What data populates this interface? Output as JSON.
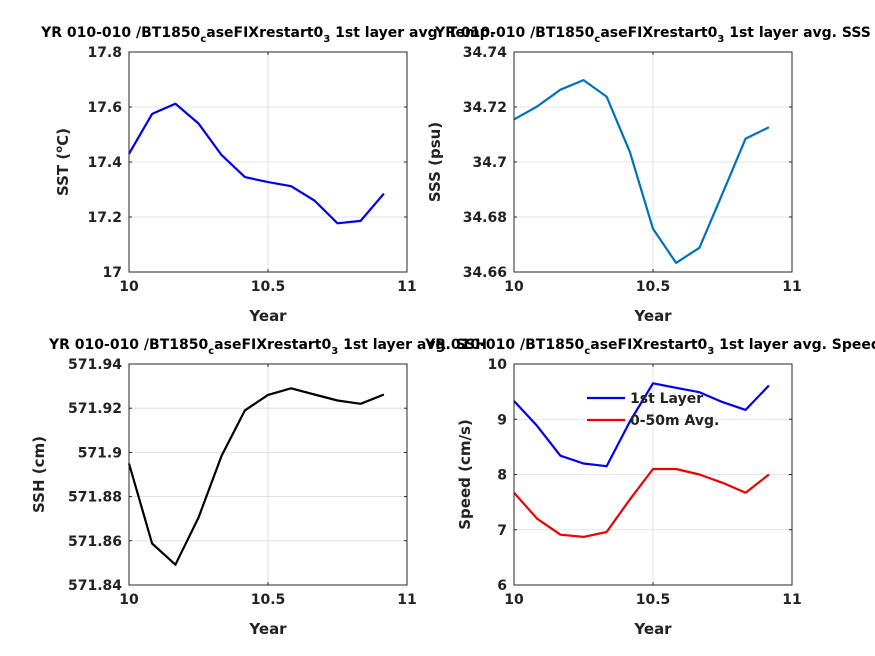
{
  "chart_data": [
    {
      "type": "line",
      "title_main": "YR 010-010 /BT1850",
      "title_sub": "c",
      "title_main2": "aseFIXrestart0",
      "title_sub2": "3",
      "title_tail": " 1st layer avg. Temp.",
      "xlabel": "Year",
      "ylabel_main": "SST (",
      "ylabel_sup": "o",
      "ylabel_tail": "C)",
      "xlim": [
        10,
        11
      ],
      "ylim": [
        17,
        17.8
      ],
      "xticks": [
        10,
        10.5,
        11
      ],
      "xtick_labels": [
        "10",
        "10.5",
        "11"
      ],
      "yticks": [
        17,
        17.2,
        17.4,
        17.6,
        17.8
      ],
      "ytick_labels": [
        "17",
        "17.2",
        "17.4",
        "17.6",
        "17.8"
      ],
      "grid": true,
      "series": [
        {
          "color": "#0000ee",
          "x": [
            10.0,
            10.083,
            10.167,
            10.25,
            10.333,
            10.417,
            10.5,
            10.583,
            10.667,
            10.75,
            10.833,
            10.917
          ],
          "values": [
            17.43,
            17.575,
            17.612,
            17.54,
            17.425,
            17.345,
            17.327,
            17.312,
            17.26,
            17.177,
            17.186,
            17.285
          ]
        }
      ]
    },
    {
      "type": "line",
      "title_main": "YR 010-010 /BT1850",
      "title_sub": "c",
      "title_main2": "aseFIXrestart0",
      "title_sub2": "3",
      "title_tail": " 1st layer avg. SSS",
      "xlabel": "Year",
      "ylabel_main": "SSS (psu)",
      "ylabel_sup": "",
      "ylabel_tail": "",
      "xlim": [
        10,
        11
      ],
      "ylim": [
        34.66,
        34.74
      ],
      "xticks": [
        10,
        10.5,
        11
      ],
      "xtick_labels": [
        "10",
        "10.5",
        "11"
      ],
      "yticks": [
        34.66,
        34.68,
        34.7,
        34.72,
        34.74
      ],
      "ytick_labels": [
        "34.66",
        "34.68",
        "34.7",
        "34.72",
        "34.74"
      ],
      "grid": true,
      "series": [
        {
          "color": "#0072bd",
          "x": [
            10.0,
            10.083,
            10.167,
            10.25,
            10.333,
            10.417,
            10.5,
            10.583,
            10.667,
            10.75,
            10.833,
            10.917
          ],
          "values": [
            34.7155,
            34.7202,
            34.7263,
            34.7298,
            34.7238,
            34.7036,
            34.6757,
            34.6633,
            34.6688,
            34.6885,
            34.7085,
            34.7126
          ]
        }
      ]
    },
    {
      "type": "line",
      "title_main": "YR 010-010 /BT1850",
      "title_sub": "c",
      "title_main2": "aseFIXrestart0",
      "title_sub2": "3",
      "title_tail": " 1st layer avg. SSH",
      "xlabel": "Year",
      "ylabel_main": "SSH (cm)",
      "ylabel_sup": "",
      "ylabel_tail": "",
      "xlim": [
        10,
        11
      ],
      "ylim": [
        571.84,
        571.94
      ],
      "xticks": [
        10,
        10.5,
        11
      ],
      "xtick_labels": [
        "10",
        "10.5",
        "11"
      ],
      "yticks": [
        571.84,
        571.86,
        571.88,
        571.9,
        571.92,
        571.94
      ],
      "ytick_labels": [
        "571.84",
        "571.86",
        "571.88",
        "571.9",
        "571.92",
        "571.94"
      ],
      "grid": true,
      "series": [
        {
          "color": "#000000",
          "x": [
            10.0,
            10.083,
            10.167,
            10.25,
            10.333,
            10.417,
            10.5,
            10.583,
            10.667,
            10.75,
            10.833,
            10.917
          ],
          "values": [
            571.895,
            571.8588,
            571.8492,
            571.8705,
            571.8985,
            571.919,
            571.926,
            571.929,
            571.9262,
            571.9235,
            571.922,
            571.9262
          ]
        }
      ]
    },
    {
      "type": "line",
      "title_main": "YR 010-010 /BT1850",
      "title_sub": "c",
      "title_main2": "aseFIXrestart0",
      "title_sub2": "3",
      "title_tail": " 1st layer avg. Speed",
      "xlabel": "Year",
      "ylabel_main": "Speed (cm/s)",
      "ylabel_sup": "",
      "ylabel_tail": "",
      "xlim": [
        10,
        11
      ],
      "ylim": [
        6,
        10
      ],
      "xticks": [
        10,
        10.5,
        11
      ],
      "xtick_labels": [
        "10",
        "10.5",
        "11"
      ],
      "yticks": [
        6,
        7,
        8,
        9,
        10
      ],
      "ytick_labels": [
        "6",
        "7",
        "8",
        "9",
        "10"
      ],
      "grid": true,
      "legend": "top-right",
      "series": [
        {
          "name": "1st Layer",
          "color": "#0000ee",
          "x": [
            10.0,
            10.083,
            10.167,
            10.25,
            10.333,
            10.417,
            10.5,
            10.583,
            10.667,
            10.75,
            10.833,
            10.917
          ],
          "values": [
            9.33,
            8.88,
            8.34,
            8.2,
            8.15,
            8.96,
            9.65,
            9.57,
            9.49,
            9.31,
            9.17,
            9.61
          ]
        },
        {
          "name": "0-50m Avg.",
          "color": "#ee0000",
          "x": [
            10.0,
            10.083,
            10.167,
            10.25,
            10.333,
            10.417,
            10.5,
            10.583,
            10.667,
            10.75,
            10.833,
            10.917
          ],
          "values": [
            7.67,
            7.2,
            6.91,
            6.87,
            6.96,
            7.55,
            8.1,
            8.1,
            8.0,
            7.85,
            7.67,
            8.0
          ]
        }
      ]
    }
  ]
}
